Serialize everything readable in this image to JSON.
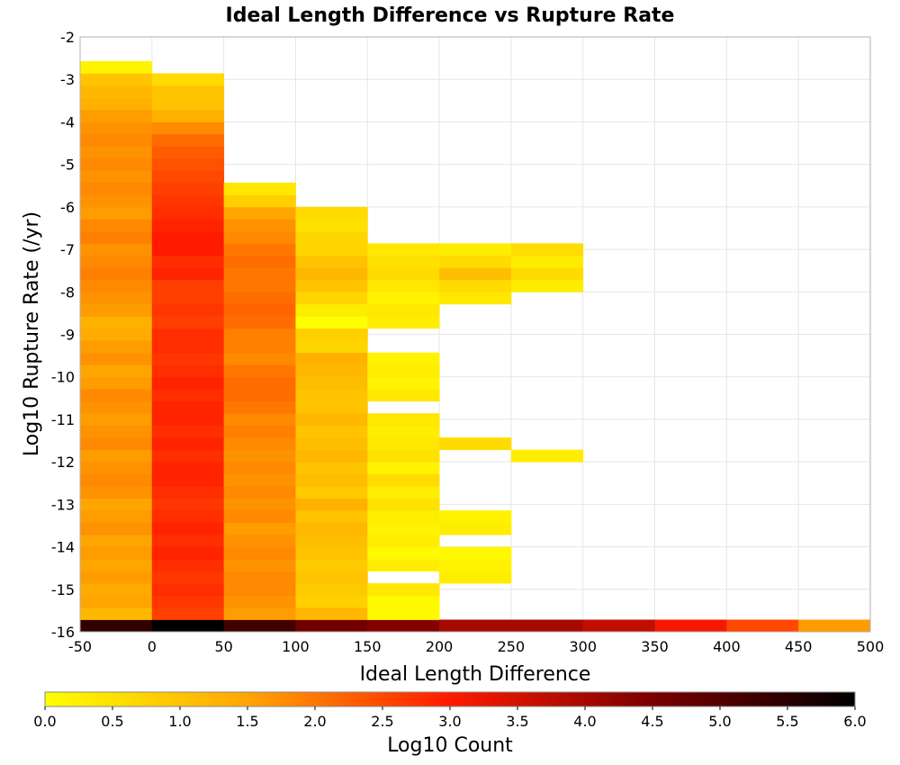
{
  "chart_data": {
    "type": "heatmap",
    "title": "Ideal Length Difference vs Rupture Rate",
    "xlabel": "Ideal Length Difference",
    "ylabel": "Log10 Rupture Rate (/yr)",
    "xlim": [
      -50,
      500
    ],
    "ylim": [
      -16,
      -2
    ],
    "x_ticks": [
      "-50",
      "0",
      "50",
      "100",
      "150",
      "200",
      "250",
      "300",
      "350",
      "400",
      "450",
      "500"
    ],
    "y_ticks": [
      "-2",
      "-3",
      "-4",
      "-5",
      "-6",
      "-7",
      "-8",
      "-9",
      "-10",
      "-11",
      "-12",
      "-13",
      "-14",
      "-15",
      "-16"
    ],
    "grid": true,
    "bin_width_x": 50,
    "bin_height_y": 0.2857,
    "colorbar": {
      "label": "Log10 Count",
      "range": [
        0,
        6
      ],
      "ticks": [
        "0.0",
        "0.5",
        "1.0",
        "1.5",
        "2.0",
        "2.5",
        "3.0",
        "3.5",
        "4.0",
        "4.5",
        "5.0",
        "5.5",
        "6.0"
      ],
      "colormap": "hot (yellow to black)"
    },
    "columns": [
      {
        "x_start": -50,
        "x_end": 0,
        "y_start": -16,
        "values": [
          5.4,
          1.2,
          1.5,
          1.4,
          1.6,
          1.5,
          1.6,
          1.5,
          1.7,
          1.6,
          1.5,
          1.7,
          1.8,
          1.7,
          1.6,
          1.8,
          1.7,
          1.6,
          1.7,
          1.8,
          1.6,
          1.5,
          1.7,
          1.6,
          1.4,
          1.3,
          1.6,
          1.7,
          1.8,
          1.9,
          1.8,
          1.7,
          1.9,
          1.8,
          1.6,
          1.7,
          1.8,
          1.7,
          1.8,
          1.7,
          1.8,
          1.7,
          1.6,
          1.3,
          1.2,
          1.0,
          0.2
        ]
      },
      {
        "x_start": 0,
        "x_end": 50,
        "y_start": -16,
        "values": [
          6.0,
          2.6,
          2.7,
          2.8,
          2.7,
          2.8,
          2.9,
          2.8,
          2.9,
          2.8,
          2.7,
          2.8,
          2.9,
          2.9,
          2.8,
          2.9,
          2.8,
          2.9,
          2.9,
          2.8,
          2.9,
          2.8,
          2.7,
          2.8,
          2.8,
          2.6,
          2.7,
          2.6,
          2.6,
          2.9,
          2.8,
          3.0,
          3.0,
          2.9,
          2.8,
          2.7,
          2.6,
          2.5,
          2.4,
          2.3,
          2.1,
          1.8,
          1.3,
          1.0,
          1.0,
          0.6
        ]
      },
      {
        "x_start": 50,
        "x_end": 100,
        "y_start": -16,
        "values": [
          5.2,
          1.6,
          1.7,
          1.8,
          1.8,
          1.7,
          1.8,
          1.7,
          1.6,
          1.8,
          1.7,
          1.8,
          1.7,
          1.8,
          1.7,
          1.8,
          1.9,
          1.8,
          2.0,
          2.1,
          2.1,
          2.0,
          1.8,
          1.9,
          1.9,
          2.1,
          2.2,
          2.1,
          2.0,
          2.0,
          2.1,
          2.0,
          1.8,
          1.7,
          1.5,
          0.8,
          0.4
        ]
      },
      {
        "x_start": 100,
        "x_end": 150,
        "y_start": -16,
        "values": [
          4.6,
          1.2,
          0.8,
          0.9,
          1.0,
          0.9,
          1.0,
          1.1,
          1.2,
          1.0,
          1.3,
          0.9,
          1.1,
          1.0,
          1.2,
          1.1,
          1.0,
          1.2,
          1.0,
          1.0,
          1.1,
          1.2,
          1.3,
          0.7,
          0.8,
          0.0,
          0.3,
          0.7,
          1.0,
          1.2,
          1.0,
          0.7,
          0.7,
          0.5,
          0.6
        ]
      },
      {
        "x_start": 150,
        "x_end": 200,
        "y_start": -16,
        "values": [
          4.4,
          0.1,
          0.1,
          0.4,
          null,
          0.3,
          0.1,
          0.3,
          0.2,
          0.3,
          0.5,
          0.3,
          0.6,
          0.2,
          0.5,
          0.4,
          0.3,
          0.4,
          null,
          0.4,
          0.2,
          0.3,
          0.2,
          null,
          null,
          0.3,
          0.4,
          0.2,
          0.4,
          0.6,
          0.5,
          0.4
        ]
      },
      {
        "x_start": 200,
        "x_end": 250,
        "y_start": -16,
        "values": [
          4.0,
          null,
          null,
          null,
          0.3,
          0.2,
          0.1,
          null,
          0.3,
          0.2,
          null,
          null,
          null,
          null,
          null,
          0.6,
          null,
          null,
          null,
          null,
          null,
          null,
          null,
          null,
          null,
          null,
          null,
          0.4,
          0.6,
          1.1,
          0.6,
          0.3
        ]
      },
      {
        "x_start": 250,
        "x_end": 300,
        "y_start": -16,
        "values": [
          4.0,
          null,
          null,
          null,
          null,
          null,
          null,
          null,
          null,
          null,
          null,
          null,
          null,
          null,
          0.3,
          null,
          null,
          null,
          null,
          null,
          null,
          null,
          null,
          null,
          null,
          null,
          null,
          null,
          0.3,
          0.6,
          0.3,
          0.6
        ]
      },
      {
        "x_start": 300,
        "x_end": 350,
        "y_start": -16,
        "values": [
          3.7
        ]
      },
      {
        "x_start": 350,
        "x_end": 400,
        "y_start": -16,
        "values": [
          3.1
        ]
      },
      {
        "x_start": 400,
        "x_end": 450,
        "y_start": -16,
        "values": [
          2.5
        ]
      },
      {
        "x_start": 450,
        "x_end": 500,
        "y_start": -16,
        "values": [
          1.6
        ]
      }
    ]
  }
}
